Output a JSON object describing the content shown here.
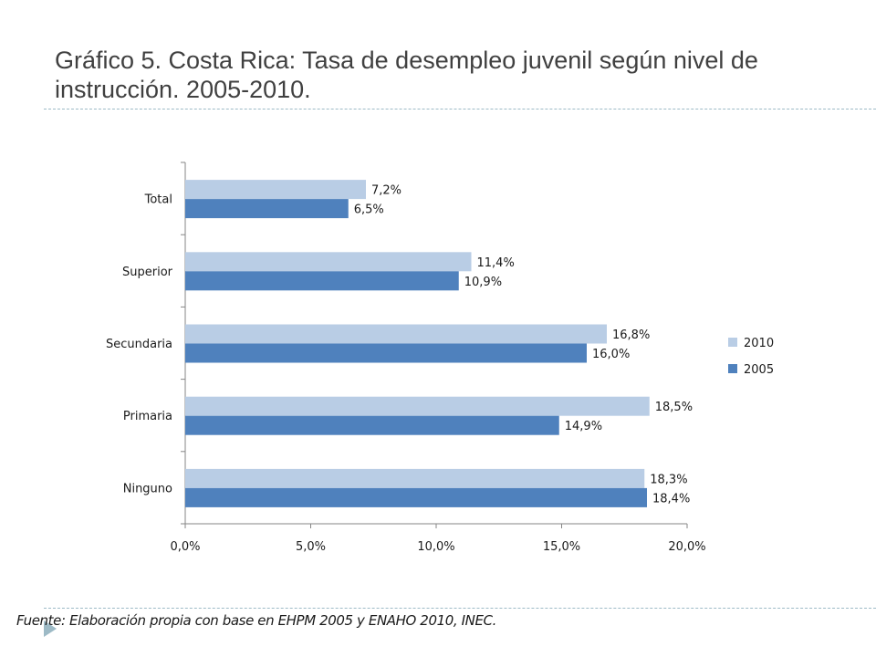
{
  "title_line1": "Gráfico 5. Costa Rica: Tasa de desempleo juvenil según nivel de",
  "title_line2": "instrucción. 2005-2010.",
  "source": "Fuente: Elaboración propia con base en EHPM 2005 y ENAHO 2010, INEC.",
  "colors": {
    "s2010": "#b9cde5",
    "s2005": "#4f81bd",
    "rule": "#9dbac6",
    "axis": "#868686"
  },
  "chart_data": {
    "type": "bar",
    "orientation": "horizontal",
    "categories": [
      "Total",
      "Superior",
      "Secundaria",
      "Primaria",
      "Ninguno"
    ],
    "series": [
      {
        "name": "2010",
        "values": [
          7.2,
          11.4,
          16.8,
          18.5,
          18.3
        ],
        "labels": [
          "7,2%",
          "11,4%",
          "16,8%",
          "18,5%",
          "18,3%"
        ]
      },
      {
        "name": "2005",
        "values": [
          6.5,
          10.9,
          16.0,
          14.9,
          18.4
        ],
        "labels": [
          "6,5%",
          "10,9%",
          "16,0%",
          "14,9%",
          "18,4%"
        ]
      }
    ],
    "xlim": [
      0,
      20
    ],
    "xticks": [
      0,
      5,
      10,
      15,
      20
    ],
    "xtick_labels": [
      "0,0%",
      "5,0%",
      "10,0%",
      "15,0%",
      "20,0%"
    ],
    "legend_position": "right",
    "grid": false
  }
}
